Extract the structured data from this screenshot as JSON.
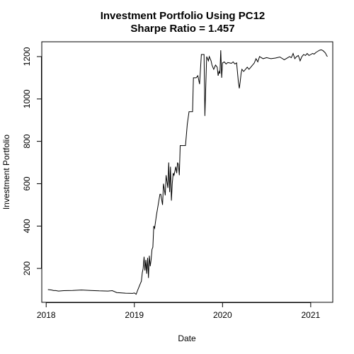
{
  "chart_data": {
    "type": "line",
    "title": "Investment Portfolio Using PC12",
    "subtitle": "Sharpe Ratio = 1.457",
    "xlabel": "Date",
    "ylabel": "Investment Portfolio",
    "xlim": [
      2017.95,
      2021.25
    ],
    "ylim": [
      40,
      1270
    ],
    "x_ticks": [
      2018,
      2019,
      2020,
      2021
    ],
    "x_tick_labels": [
      "2018",
      "2019",
      "2020",
      "2021"
    ],
    "y_ticks": [
      200,
      400,
      600,
      800,
      1000,
      1200
    ],
    "y_tick_labels": [
      "200",
      "400",
      "600",
      "800",
      "1000",
      "1200"
    ],
    "grid": false,
    "series": [
      {
        "color": "#000000",
        "x": [
          2018.02,
          2018.06,
          2018.09,
          2018.1,
          2018.14,
          2018.2,
          2018.3,
          2018.4,
          2018.5,
          2018.6,
          2018.7,
          2018.75,
          2018.8,
          2018.9,
          2018.98,
          2019.0,
          2019.02,
          2019.04,
          2019.06,
          2019.08,
          2019.09,
          2019.1,
          2019.11,
          2019.12,
          2019.13,
          2019.14,
          2019.15,
          2019.16,
          2019.17,
          2019.18,
          2019.19,
          2019.2,
          2019.21,
          2019.22,
          2019.23,
          2019.25,
          2019.27,
          2019.29,
          2019.3,
          2019.32,
          2019.33,
          2019.35,
          2019.36,
          2019.38,
          2019.39,
          2019.4,
          2019.41,
          2019.42,
          2019.43,
          2019.44,
          2019.45,
          2019.47,
          2019.48,
          2019.49,
          2019.5,
          2019.51,
          2019.52,
          2019.54,
          2019.56,
          2019.58,
          2019.6,
          2019.62,
          2019.64,
          2019.66,
          2019.67,
          2019.7,
          2019.72,
          2019.74,
          2019.76,
          2019.78,
          2019.79,
          2019.8,
          2019.82,
          2019.84,
          2019.85,
          2019.86,
          2019.87,
          2019.88,
          2019.89,
          2019.9,
          2019.92,
          2019.94,
          2019.95,
          2019.96,
          2019.97,
          2019.98,
          2019.99,
          2020.0,
          2020.02,
          2020.04,
          2020.06,
          2020.08,
          2020.1,
          2020.12,
          2020.14,
          2020.16,
          2020.18,
          2020.19,
          2020.2,
          2020.21,
          2020.22,
          2020.24,
          2020.26,
          2020.28,
          2020.3,
          2020.32,
          2020.34,
          2020.36,
          2020.38,
          2020.4,
          2020.42,
          2020.46,
          2020.5,
          2020.55,
          2020.6,
          2020.65,
          2020.7,
          2020.72,
          2020.74,
          2020.76,
          2020.78,
          2020.8,
          2020.82,
          2020.84,
          2020.86,
          2020.88,
          2020.9,
          2020.92,
          2020.94,
          2020.96,
          2020.98,
          2021.0,
          2021.02,
          2021.04,
          2021.06,
          2021.08,
          2021.1,
          2021.12,
          2021.14,
          2021.16,
          2021.17,
          2021.18,
          2021.19
        ],
        "values": [
          100,
          98,
          95,
          96,
          93,
          95,
          96,
          98,
          96,
          94,
          93,
          95,
          86,
          83,
          82,
          84,
          78,
          100,
          120,
          140,
          180,
          200,
          255,
          190,
          240,
          175,
          250,
          155,
          260,
          210,
          240,
          290,
          300,
          400,
          390,
          450,
          500,
          550,
          550,
          500,
          600,
          545,
          640,
          580,
          700,
          560,
          680,
          520,
          600,
          650,
          640,
          680,
          650,
          700,
          690,
          640,
          780,
          780,
          780,
          780,
          880,
          940,
          940,
          940,
          1100,
          1100,
          1110,
          1070,
          1210,
          1210,
          1210,
          920,
          1200,
          1180,
          1200,
          1190,
          1180,
          1160,
          1150,
          1140,
          1160,
          1150,
          1110,
          1130,
          1120,
          1230,
          1100,
          1170,
          1175,
          1165,
          1172,
          1170,
          1168,
          1175,
          1165,
          1170,
          1080,
          1050,
          1080,
          1120,
          1140,
          1130,
          1140,
          1150,
          1140,
          1150,
          1160,
          1170,
          1190,
          1175,
          1200,
          1190,
          1195,
          1190,
          1193,
          1198,
          1185,
          1190,
          1195,
          1200,
          1195,
          1215,
          1190,
          1200,
          1205,
          1180,
          1200,
          1210,
          1205,
          1215,
          1205,
          1210,
          1215,
          1212,
          1220,
          1225,
          1230,
          1232,
          1228,
          1220,
          1215,
          1205,
          1200
        ]
      }
    ]
  }
}
